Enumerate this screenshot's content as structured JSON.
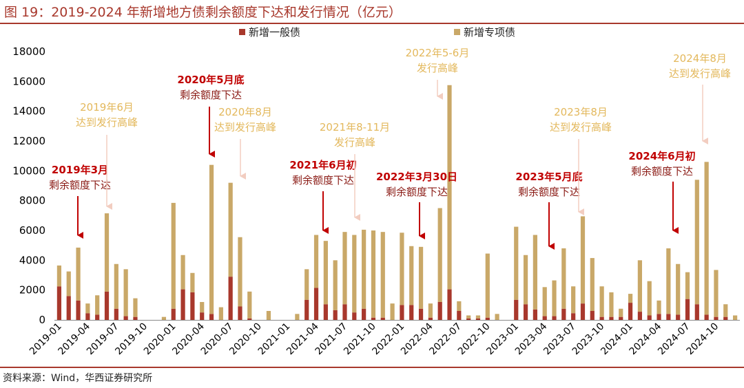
{
  "header": {
    "title": "图 19：2019-2024 年新增地方债剩余额度下达和发行情况（亿元）"
  },
  "footer": {
    "source": "资料来源：Wind，华西证券研究所"
  },
  "colors": {
    "general": "#a8382c",
    "special": "#c9a868",
    "annotation_red": "#c00000",
    "annotation_gold": "#e3b85c",
    "arrow_gold": "#f2cdc0",
    "rule": "#a8382c"
  },
  "chart_data": {
    "type": "bar",
    "stacked": true,
    "title": "",
    "xlabel": "",
    "ylabel": "",
    "ylim": [
      0,
      18000
    ],
    "yticks": [
      0,
      2000,
      4000,
      6000,
      8000,
      10000,
      12000,
      14000,
      16000,
      18000
    ],
    "grid": false,
    "legend_position": "top-center",
    "x_tick_labels": [
      "2019-01",
      "2019-04",
      "2019-07",
      "2019-10",
      "2020-01",
      "2020-04",
      "2020-07",
      "2020-10",
      "2021-01",
      "2021-04",
      "2021-07",
      "2021-10",
      "2022-01",
      "2022-04",
      "2022-07",
      "2022-10",
      "2023-01",
      "2023-04",
      "2023-07",
      "2023-10",
      "2024-01",
      "2024-04",
      "2024-07",
      "2024-10"
    ],
    "categories": [
      "2019-01",
      "2019-02",
      "2019-03",
      "2019-04",
      "2019-05",
      "2019-06",
      "2019-07",
      "2019-08",
      "2019-09",
      "2019-10",
      "2019-11",
      "2019-12",
      "2020-01",
      "2020-02",
      "2020-03",
      "2020-04",
      "2020-05",
      "2020-06",
      "2020-07",
      "2020-08",
      "2020-09",
      "2020-10",
      "2020-11",
      "2020-12",
      "2021-01",
      "2021-02",
      "2021-03",
      "2021-04",
      "2021-05",
      "2021-06",
      "2021-07",
      "2021-08",
      "2021-09",
      "2021-10",
      "2021-11",
      "2021-12",
      "2022-01",
      "2022-02",
      "2022-03",
      "2022-04",
      "2022-05",
      "2022-06",
      "2022-07",
      "2022-08",
      "2022-09",
      "2022-10",
      "2022-11",
      "2022-12",
      "2023-01",
      "2023-02",
      "2023-03",
      "2023-04",
      "2023-05",
      "2023-06",
      "2023-07",
      "2023-08",
      "2023-09",
      "2023-10",
      "2023-11",
      "2023-12",
      "2024-01",
      "2024-02",
      "2024-03",
      "2024-04",
      "2024-05",
      "2024-06",
      "2024-07",
      "2024-08",
      "2024-09",
      "2024-10",
      "2024-11",
      "2024-12"
    ],
    "series": [
      {
        "name": "新增一般债",
        "values": [
          2250,
          1600,
          1300,
          450,
          350,
          1900,
          750,
          250,
          200,
          0,
          0,
          0,
          750,
          2050,
          1850,
          500,
          400,
          0,
          2900,
          900,
          100,
          0,
          0,
          0,
          0,
          0,
          1350,
          2150,
          1050,
          650,
          1050,
          500,
          750,
          150,
          150,
          0,
          1000,
          1000,
          750,
          150,
          1200,
          2050,
          600,
          100,
          100,
          150,
          0,
          0,
          1350,
          1050,
          700,
          250,
          250,
          750,
          450,
          1100,
          600,
          200,
          200,
          200,
          1150,
          550,
          300,
          400,
          400,
          350,
          1400,
          1050,
          350,
          200,
          200,
          0
        ],
        "color_key": "general"
      },
      {
        "name": "新增专项债",
        "values": [
          1400,
          1650,
          3550,
          650,
          1300,
          5250,
          3000,
          3150,
          1250,
          0,
          0,
          200,
          7100,
          2300,
          1300,
          700,
          10000,
          850,
          6300,
          4650,
          1800,
          0,
          600,
          0,
          0,
          400,
          2050,
          3550,
          4250,
          3350,
          4850,
          5200,
          5300,
          5850,
          5750,
          1100,
          4850,
          3950,
          4150,
          950,
          6300,
          13700,
          650,
          200,
          200,
          4300,
          400,
          0,
          4900,
          3300,
          5000,
          1950,
          2400,
          4050,
          1800,
          5850,
          3550,
          2050,
          1650,
          550,
          600,
          3450,
          2300,
          900,
          4400,
          3400,
          1800,
          8350,
          10250,
          3150,
          850,
          300
        ],
        "color_key": "special"
      }
    ],
    "annotations": [
      {
        "lines": [
          "2019年3月",
          "剩余额度下达"
        ],
        "target": "2019-03",
        "kind": "red"
      },
      {
        "lines": [
          "2019年6月",
          "达到发行高峰"
        ],
        "target": "2019-06",
        "kind": "gold"
      },
      {
        "lines": [
          "2020年5月底",
          "剩余额度下达"
        ],
        "target": "2020-05",
        "kind": "red"
      },
      {
        "lines": [
          "2020年8月",
          "达到发行高峰"
        ],
        "target": "2020-08",
        "kind": "gold"
      },
      {
        "lines": [
          "2021年6月初",
          "剩余额度下达"
        ],
        "target": "2021-06",
        "kind": "red"
      },
      {
        "lines": [
          "2021年8-11月",
          "发行高峰"
        ],
        "target": "2021-09",
        "kind": "gold"
      },
      {
        "lines": [
          "2022年3月30日",
          "剩余额度下达"
        ],
        "target": "2022-04",
        "kind": "red"
      },
      {
        "lines": [
          "2022年5-6月",
          "发行高峰"
        ],
        "target": "2022-05",
        "kind": "gold"
      },
      {
        "lines": [
          "2023年5月底",
          "剩余额度下达"
        ],
        "target": "2023-05",
        "kind": "red"
      },
      {
        "lines": [
          "2023年8月",
          "达到发行高峰"
        ],
        "target": "2023-08",
        "kind": "gold"
      },
      {
        "lines": [
          "2024年6月初",
          "剩余额度下达"
        ],
        "target": "2024-06",
        "kind": "red"
      },
      {
        "lines": [
          "2024年8月",
          "达到发行高峰"
        ],
        "target": "2024-08",
        "kind": "gold"
      }
    ]
  }
}
